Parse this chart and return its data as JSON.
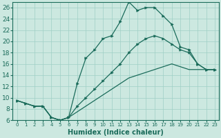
{
  "xlabel": "Humidex (Indice chaleur)",
  "xlim": [
    -0.5,
    23.5
  ],
  "ylim": [
    6,
    27
  ],
  "yticks": [
    6,
    8,
    10,
    12,
    14,
    16,
    18,
    20,
    22,
    24,
    26
  ],
  "xticks": [
    0,
    1,
    2,
    3,
    4,
    5,
    6,
    7,
    8,
    9,
    10,
    11,
    12,
    13,
    14,
    15,
    16,
    17,
    18,
    19,
    20,
    21,
    22,
    23
  ],
  "xticklabels": [
    "0",
    "1",
    "2",
    "3",
    "4",
    "5",
    "6",
    "7",
    "8",
    "9",
    "10",
    "11",
    "12",
    "13",
    "14",
    "15",
    "16",
    "17",
    "18",
    "19",
    "20",
    "21",
    "22",
    "23"
  ],
  "bg_color": "#cce8e0",
  "grid_color": "#9fcfc5",
  "line_color": "#1a6b5a",
  "lines": [
    {
      "x": [
        0,
        1,
        2,
        3,
        4,
        5,
        6,
        7,
        8,
        9,
        10,
        11,
        12,
        13,
        14,
        15,
        16,
        17,
        18,
        19,
        20,
        21,
        22,
        23
      ],
      "y": [
        9.5,
        9.0,
        8.5,
        8.5,
        6.5,
        6.0,
        6.5,
        12.5,
        17.0,
        18.5,
        20.5,
        21.0,
        23.5,
        27.0,
        25.5,
        26.0,
        26.0,
        24.5,
        23.0,
        19.0,
        18.5,
        16.0,
        15.0,
        15.0
      ],
      "marker": true
    },
    {
      "x": [
        0,
        1,
        2,
        3,
        4,
        5,
        6,
        7,
        8,
        9,
        10,
        11,
        12,
        13,
        14,
        15,
        16,
        17,
        18,
        19,
        20,
        21,
        22,
        23
      ],
      "y": [
        9.5,
        9.0,
        8.5,
        8.5,
        6.5,
        6.0,
        6.5,
        8.5,
        10.0,
        11.5,
        13.0,
        14.5,
        16.0,
        18.0,
        19.5,
        20.5,
        21.0,
        20.5,
        19.5,
        18.5,
        18.0,
        16.0,
        15.0,
        15.0
      ],
      "marker": true
    },
    {
      "x": [
        0,
        1,
        2,
        3,
        4,
        5,
        6,
        7,
        8,
        9,
        10,
        11,
        12,
        13,
        14,
        15,
        16,
        17,
        18,
        19,
        20,
        21,
        22,
        23
      ],
      "y": [
        9.5,
        9.0,
        8.5,
        8.5,
        6.5,
        6.0,
        6.5,
        7.5,
        8.5,
        9.5,
        10.5,
        11.5,
        12.5,
        13.5,
        14.0,
        14.5,
        15.0,
        15.5,
        16.0,
        15.5,
        15.0,
        15.0,
        15.0,
        15.0
      ],
      "marker": false
    }
  ]
}
